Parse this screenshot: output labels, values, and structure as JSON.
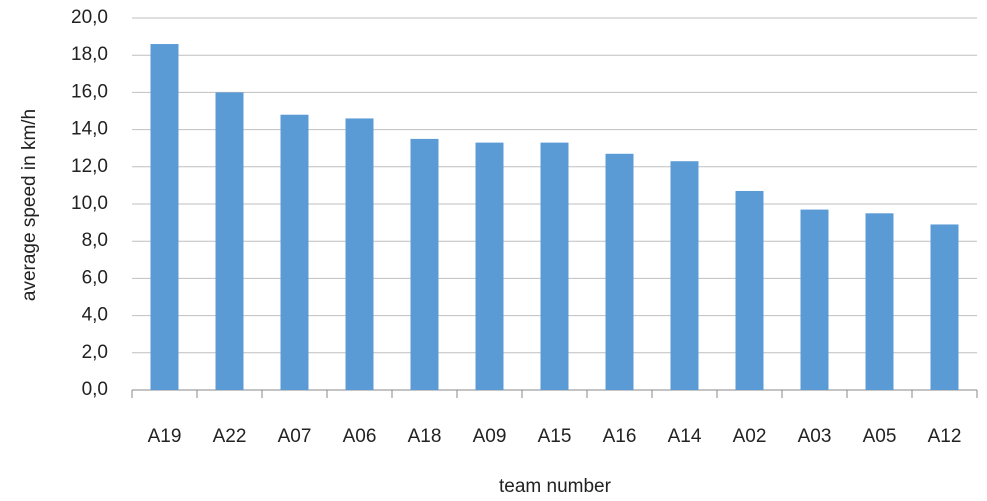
{
  "chart_data": {
    "type": "bar",
    "xlabel": "team number",
    "ylabel": "average speed in km/h",
    "categories": [
      "A19",
      "A22",
      "A07",
      "A06",
      "A18",
      "A09",
      "A15",
      "A16",
      "A14",
      "A02",
      "A03",
      "A05",
      "A12"
    ],
    "values": [
      18.6,
      16.0,
      14.8,
      14.6,
      13.5,
      13.3,
      13.3,
      12.7,
      12.3,
      10.7,
      9.7,
      9.5,
      8.9
    ],
    "color": "#5b9bd5",
    "ylim": [
      0,
      20
    ],
    "yticks": [
      {
        "value": 0,
        "label": "0,0"
      },
      {
        "value": 2,
        "label": "2,0"
      },
      {
        "value": 4,
        "label": "4,0"
      },
      {
        "value": 6,
        "label": "6,0"
      },
      {
        "value": 8,
        "label": "8,0"
      },
      {
        "value": 10,
        "label": "10,0"
      },
      {
        "value": 12,
        "label": "12,0"
      },
      {
        "value": 14,
        "label": "14,0"
      },
      {
        "value": 16,
        "label": "16,0"
      },
      {
        "value": 18,
        "label": "18,0"
      },
      {
        "value": 20,
        "label": "20,0"
      }
    ],
    "grid": true
  }
}
